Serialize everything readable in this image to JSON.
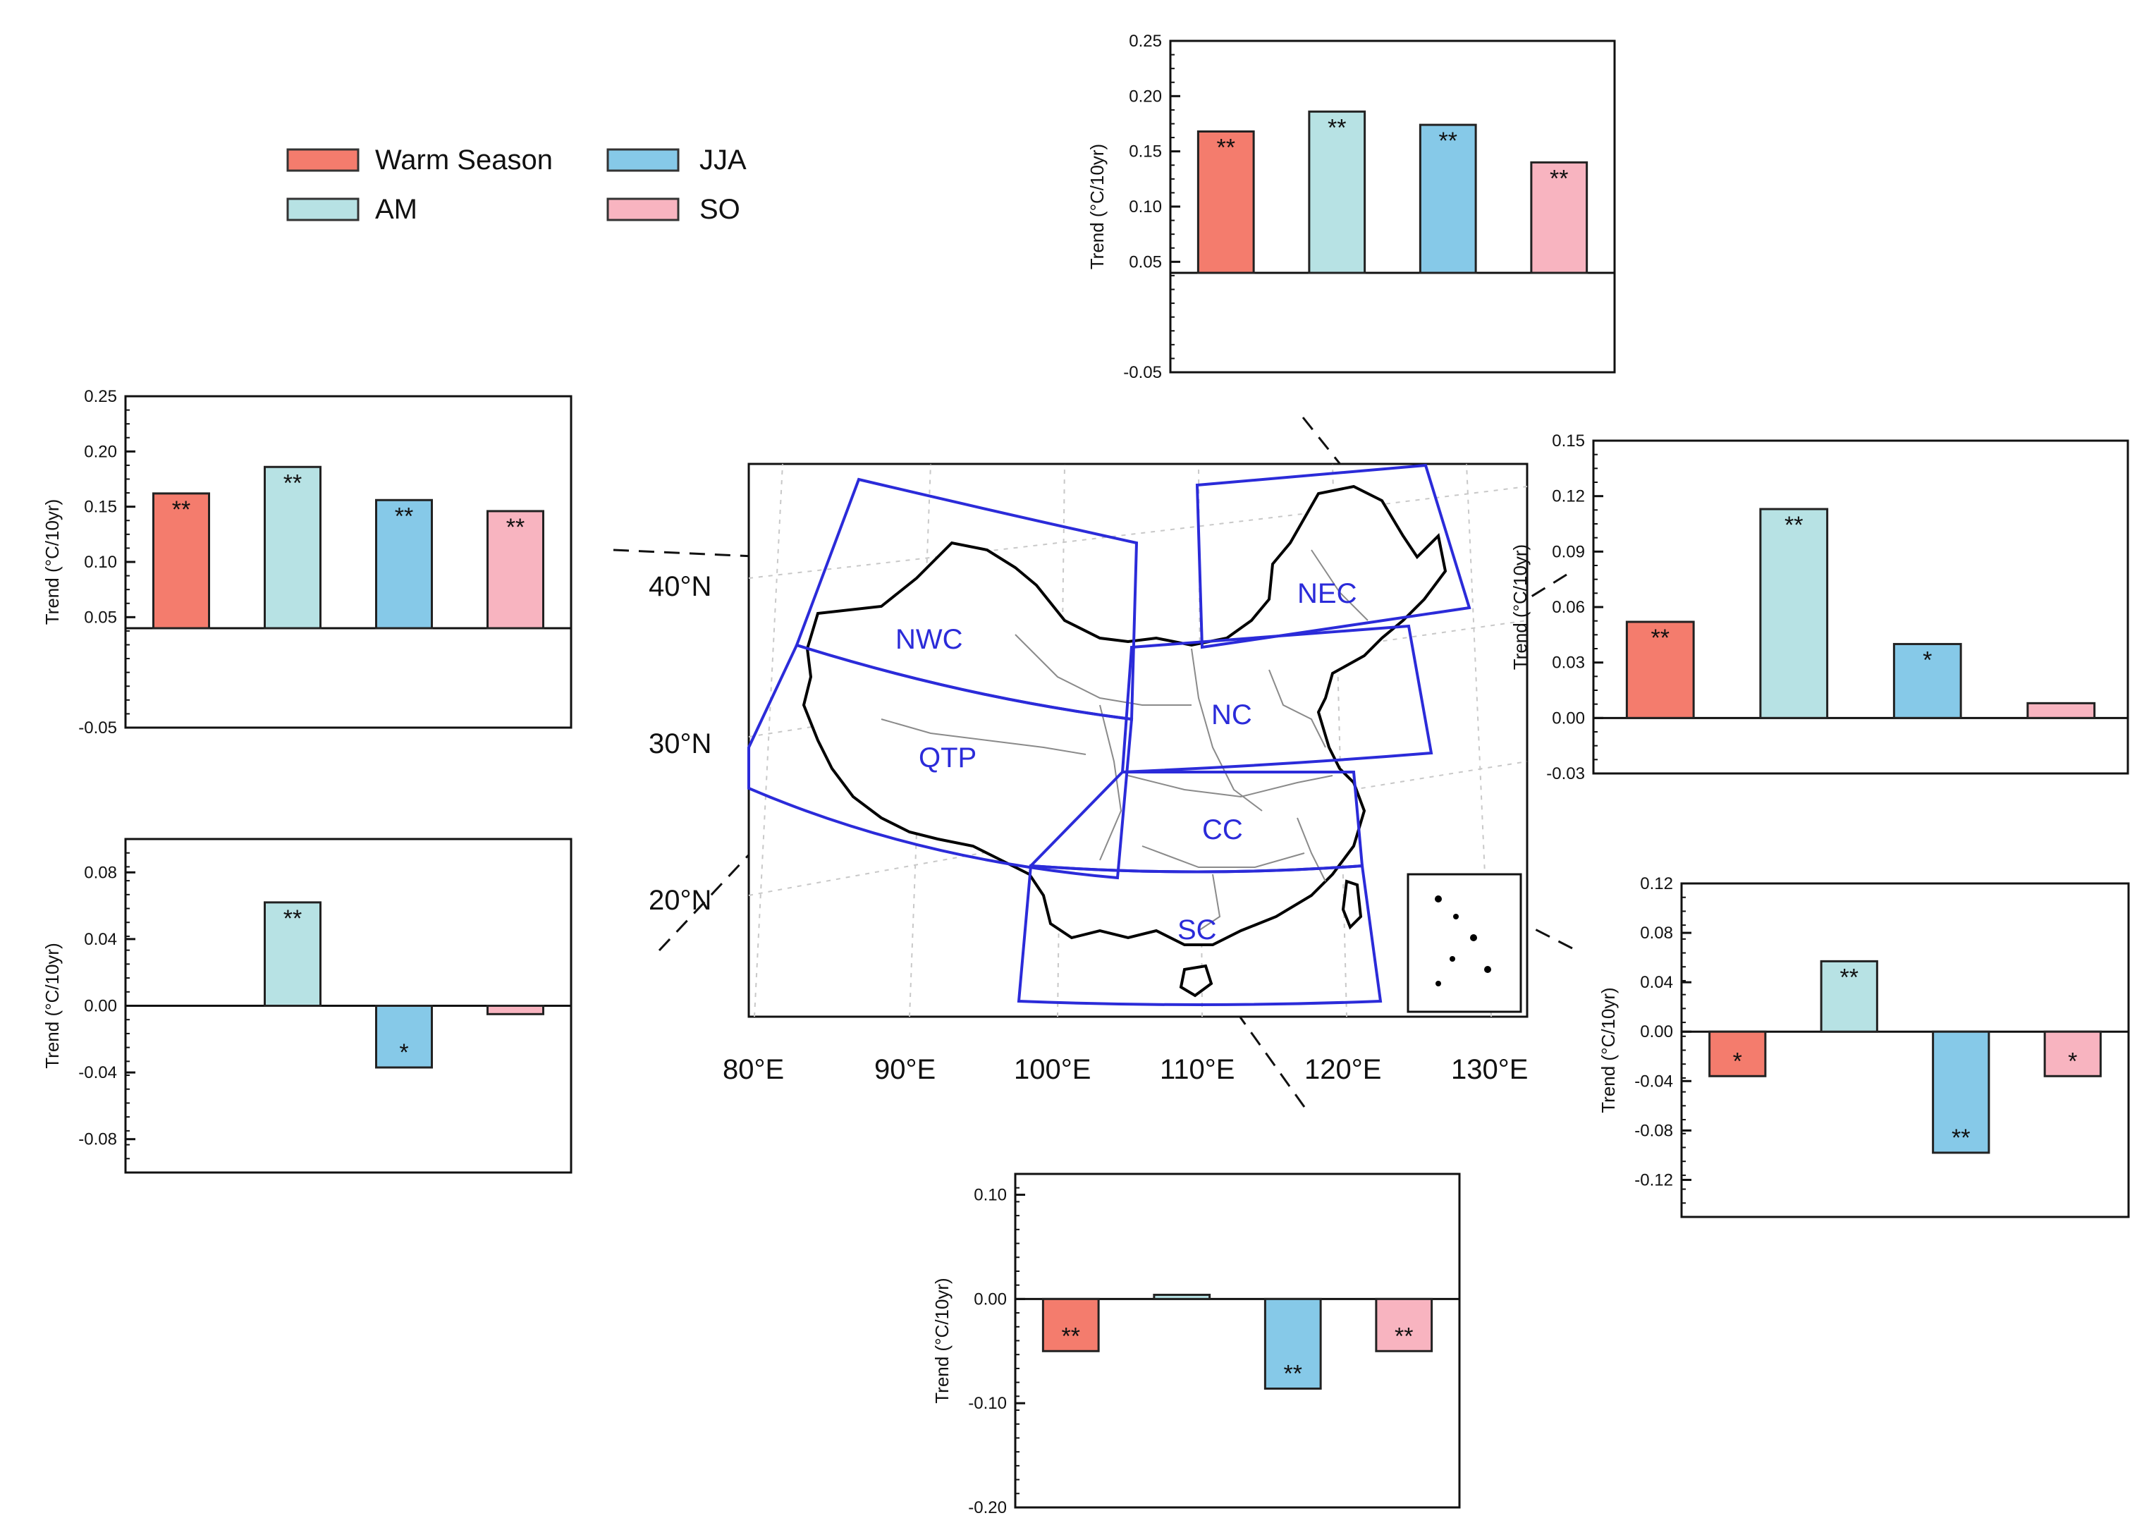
{
  "colors": {
    "warm_season": "#f47c6d",
    "am": "#b7e2e4",
    "jja": "#86c9e8",
    "so": "#f8b4c0",
    "region_box": "#2b2bd9",
    "region_label": "#2b2bd9",
    "axis": "#000000"
  },
  "legend": {
    "items": [
      {
        "label": "Warm Season",
        "color": "#f47c6d"
      },
      {
        "label": "JJA",
        "color": "#86c9e8"
      },
      {
        "label": "AM",
        "color": "#b7e2e4"
      },
      {
        "label": "SO",
        "color": "#f8b4c0"
      }
    ]
  },
  "map": {
    "lat_labels": [
      "40°N",
      "30°N",
      "20°N"
    ],
    "lon_labels": [
      "80°E",
      "90°E",
      "100°E",
      "110°E",
      "120°E",
      "130°E"
    ],
    "regions": [
      "NWC",
      "NEC",
      "NC",
      "QTP",
      "CC",
      "SC"
    ]
  },
  "chart_data": [
    {
      "region": "NEC",
      "type": "bar",
      "categories": [
        "Warm Season",
        "AM",
        "JJA",
        "SO"
      ],
      "values": [
        0.168,
        0.186,
        0.174,
        0.14
      ],
      "significance": [
        "**",
        "**",
        "**",
        "**"
      ],
      "ylabel": "Trend (°C/10yr)",
      "ylim": [
        -0.05,
        0.25
      ],
      "baseline": 0.04,
      "ticks": [
        "0.25",
        "0.20",
        "0.15",
        "0.10",
        "0.05",
        "-0.05"
      ],
      "tick_values": [
        0.25,
        0.2,
        0.15,
        0.1,
        0.05,
        -0.05
      ]
    },
    {
      "region": "NWC",
      "type": "bar",
      "categories": [
        "Warm Season",
        "AM",
        "JJA",
        "SO"
      ],
      "values": [
        0.162,
        0.186,
        0.156,
        0.146
      ],
      "significance": [
        "**",
        "**",
        "**",
        "**"
      ],
      "ylabel": "Trend (°C/10yr)",
      "ylim": [
        -0.05,
        0.25
      ],
      "baseline": 0.04,
      "ticks": [
        "0.25",
        "0.20",
        "0.15",
        "0.10",
        "0.05",
        "-0.05"
      ],
      "tick_values": [
        0.25,
        0.2,
        0.15,
        0.1,
        0.05,
        -0.05
      ]
    },
    {
      "region": "NC",
      "type": "bar",
      "categories": [
        "Warm Season",
        "AM",
        "JJA",
        "SO"
      ],
      "values": [
        0.052,
        0.113,
        0.04,
        0.008
      ],
      "significance": [
        "**",
        "**",
        "*",
        ""
      ],
      "ylabel": "Trend (°C/10yr)",
      "ylim": [
        -0.03,
        0.15
      ],
      "baseline": 0,
      "ticks": [
        "0.15",
        "0.12",
        "0.09",
        "0.06",
        "0.03",
        "0.00",
        "-0.03"
      ],
      "tick_values": [
        0.15,
        0.12,
        0.09,
        0.06,
        0.03,
        0.0,
        -0.03
      ]
    },
    {
      "region": "QTP",
      "type": "bar",
      "categories": [
        "Warm Season",
        "AM",
        "JJA",
        "SO"
      ],
      "values": [
        0.0,
        0.062,
        -0.037,
        -0.005
      ],
      "significance": [
        "",
        "**",
        "*",
        ""
      ],
      "ylabel": "Trend (°C/10yr)",
      "ylim": [
        -0.1,
        0.1
      ],
      "baseline": 0,
      "ticks": [
        "0.08",
        "0.04",
        "0.00",
        "-0.04",
        "-0.08"
      ],
      "tick_values": [
        0.08,
        0.04,
        0.0,
        -0.04,
        -0.08
      ]
    },
    {
      "region": "CC",
      "type": "bar",
      "categories": [
        "Warm Season",
        "AM",
        "JJA",
        "SO"
      ],
      "values": [
        -0.036,
        0.057,
        -0.098,
        -0.036
      ],
      "significance": [
        "*",
        "**",
        "**",
        "*"
      ],
      "ylabel": "Trend (°C/10yr)",
      "ylim": [
        -0.15,
        0.12
      ],
      "baseline": 0,
      "ticks": [
        "0.12",
        "0.08",
        "0.04",
        "0.00",
        "-0.04",
        "-0.08",
        "-0.12"
      ],
      "tick_values": [
        0.12,
        0.08,
        0.04,
        0.0,
        -0.04,
        -0.08,
        -0.12
      ]
    },
    {
      "region": "SC",
      "type": "bar",
      "categories": [
        "Warm Season",
        "AM",
        "JJA",
        "SO"
      ],
      "values": [
        -0.05,
        0.004,
        -0.086,
        -0.05
      ],
      "significance": [
        "**",
        "",
        "**",
        "**"
      ],
      "ylabel": "Trend (°C/10yr)",
      "ylim": [
        -0.2,
        0.12
      ],
      "baseline": 0,
      "ticks": [
        "0.10",
        "0.00",
        "-0.10",
        "-0.20"
      ],
      "tick_values": [
        0.1,
        0.0,
        -0.1,
        -0.2
      ]
    }
  ]
}
